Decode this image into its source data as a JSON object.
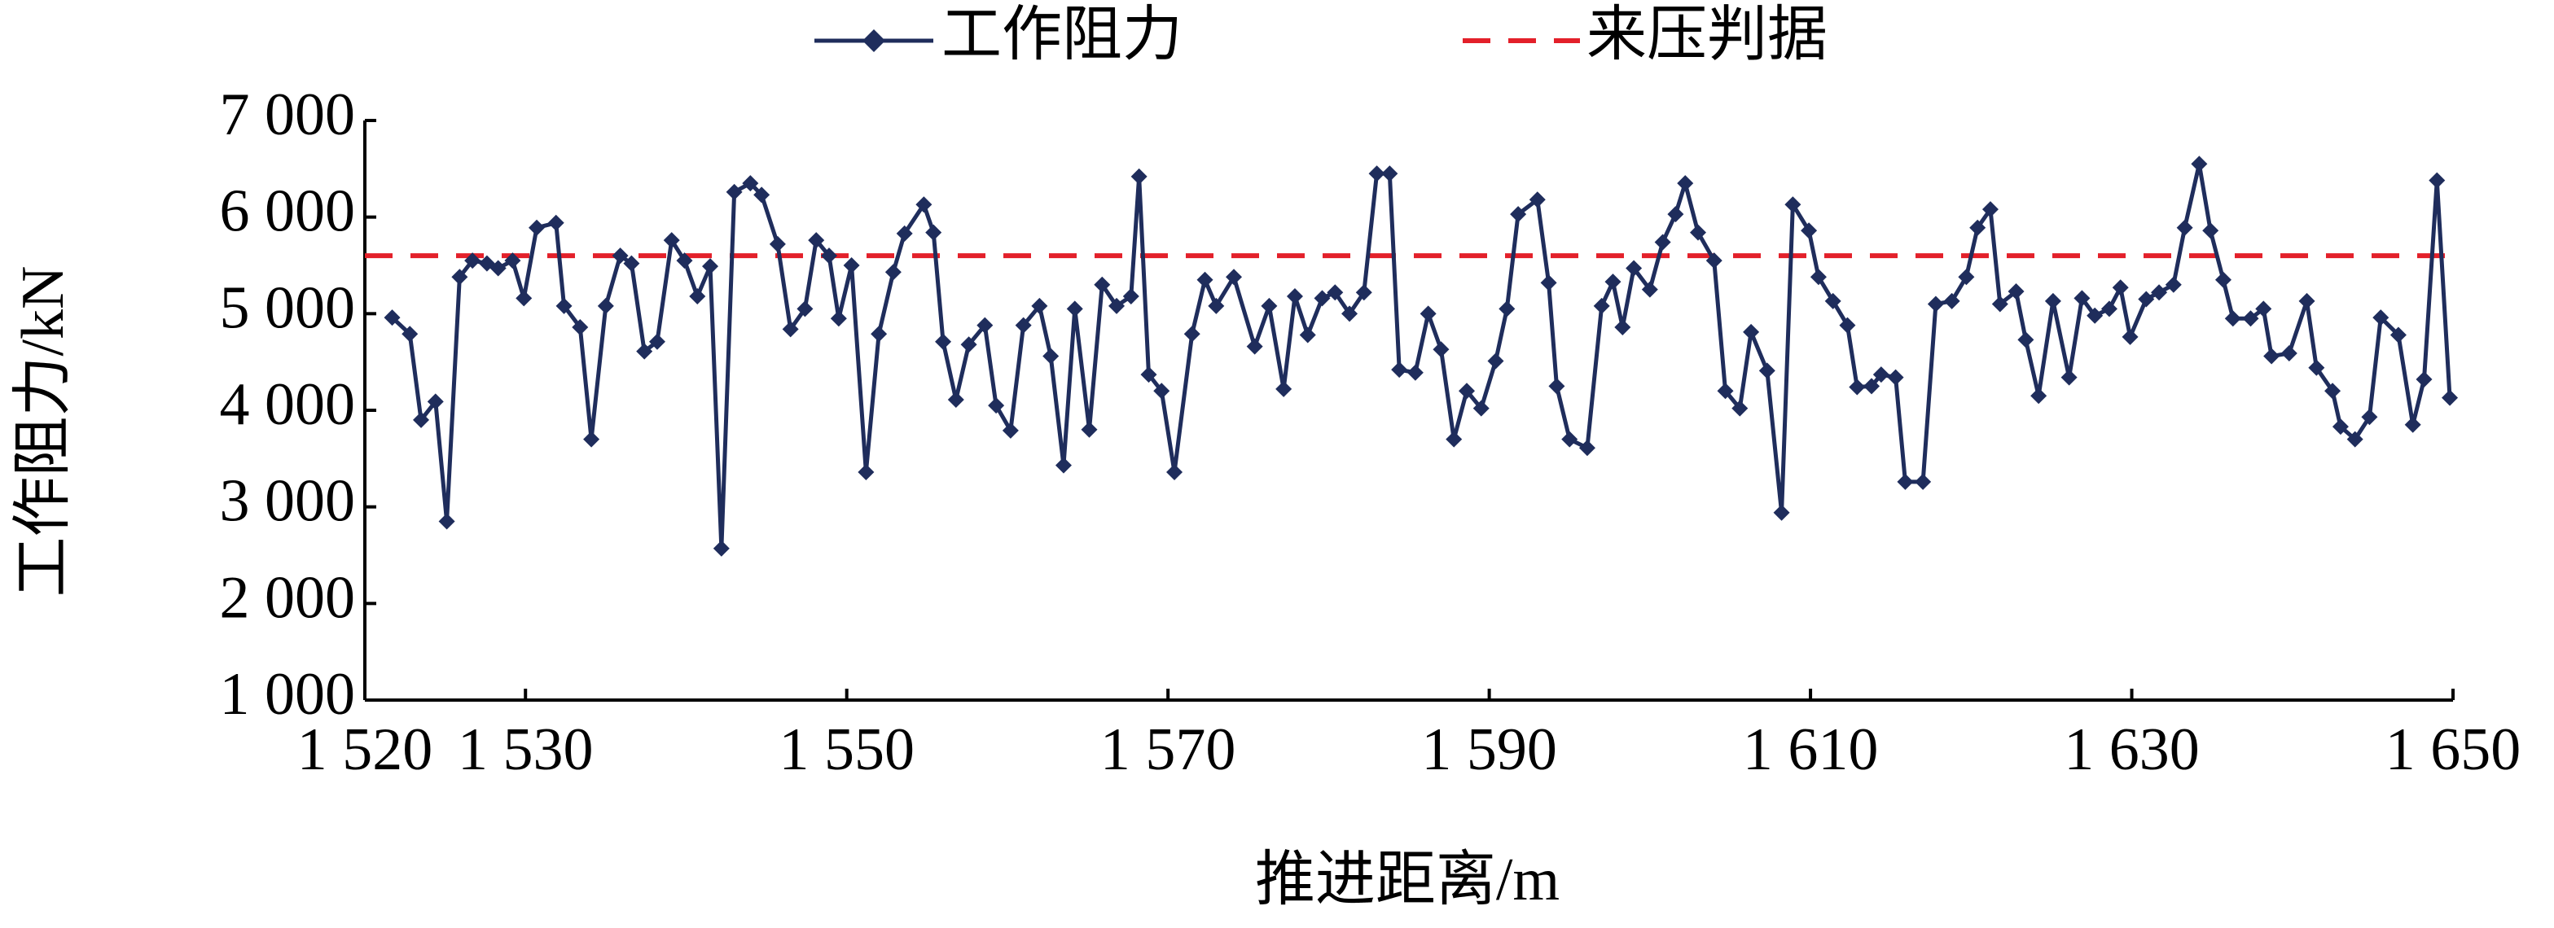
{
  "chart_data": {
    "type": "line",
    "xlabel": "推进距离/m",
    "ylabel": "工作阻力/kN",
    "xlim": [
      1520,
      1650
    ],
    "xticks": [
      {
        "value": 1520,
        "label": "1 520"
      },
      {
        "value": 1530,
        "label": "1 530"
      },
      {
        "value": 1550,
        "label": "1 550"
      },
      {
        "value": 1570,
        "label": "1 570"
      },
      {
        "value": 1590,
        "label": "1 590"
      },
      {
        "value": 1610,
        "label": "1 610"
      },
      {
        "value": 1630,
        "label": "1 630"
      },
      {
        "value": 1650,
        "label": "1 650"
      }
    ],
    "ylim": [
      1000,
      7000
    ],
    "yticks": [
      {
        "value": 1000,
        "label": "1 000"
      },
      {
        "value": 2000,
        "label": "2 000"
      },
      {
        "value": 3000,
        "label": "3 000"
      },
      {
        "value": 4000,
        "label": "4 000"
      },
      {
        "value": 5000,
        "label": "5 000"
      },
      {
        "value": 6000,
        "label": "6 000"
      },
      {
        "value": 7000,
        "label": "7 000"
      }
    ],
    "legend": "top",
    "x": [
      1521.7,
      1522.8,
      1523.5,
      1524.4,
      1525.1,
      1525.9,
      1526.7,
      1527.6,
      1528.3,
      1529.2,
      1529.9,
      1530.7,
      1531.9,
      1532.4,
      1533.4,
      1534.1,
      1535.0,
      1535.9,
      1536.6,
      1537.4,
      1538.2,
      1539.1,
      1539.9,
      1540.7,
      1541.5,
      1542.2,
      1543.0,
      1544.0,
      1544.7,
      1545.7,
      1546.5,
      1547.4,
      1548.1,
      1548.9,
      1549.5,
      1550.3,
      1551.2,
      1552.0,
      1552.9,
      1553.6,
      1554.8,
      1555.4,
      1556.0,
      1556.8,
      1557.6,
      1558.6,
      1559.3,
      1560.2,
      1561.0,
      1562.0,
      1562.7,
      1563.5,
      1564.2,
      1565.1,
      1565.9,
      1566.8,
      1567.7,
      1568.2,
      1568.8,
      1569.6,
      1570.4,
      1571.5,
      1572.3,
      1573.0,
      1574.1,
      1575.4,
      1576.3,
      1577.2,
      1577.9,
      1578.7,
      1579.6,
      1580.4,
      1581.3,
      1582.2,
      1583.0,
      1583.8,
      1584.4,
      1585.4,
      1586.2,
      1587.0,
      1587.8,
      1588.6,
      1589.5,
      1590.4,
      1591.1,
      1591.8,
      1593.0,
      1593.7,
      1594.2,
      1595.0,
      1596.1,
      1597.0,
      1597.7,
      1598.3,
      1599.0,
      1600.0,
      1600.8,
      1601.6,
      1602.2,
      1603.0,
      1604.0,
      1604.7,
      1605.6,
      1606.3,
      1607.3,
      1608.2,
      1608.9,
      1609.9,
      1610.5,
      1611.4,
      1612.3,
      1612.9,
      1613.8,
      1614.4,
      1615.3,
      1615.9,
      1617.0,
      1617.8,
      1618.8,
      1619.7,
      1620.4,
      1621.2,
      1621.8,
      1622.8,
      1623.4,
      1624.2,
      1625.1,
      1626.1,
      1626.9,
      1627.7,
      1628.6,
      1629.3,
      1629.9,
      1630.9,
      1631.7,
      1632.6,
      1633.3,
      1634.2,
      1634.9,
      1635.7,
      1636.3,
      1637.4,
      1638.2,
      1638.7,
      1639.8,
      1640.9,
      1641.5,
      1642.5,
      1643.0,
      1643.9,
      1644.8,
      1645.5,
      1646.6,
      1647.5,
      1648.2,
      1649.0,
      1649.8
    ],
    "series": [
      {
        "name": "工作阻力",
        "color": "#1f2d5c",
        "values": [
          4960,
          4790,
          3900,
          4090,
          2850,
          5380,
          5550,
          5520,
          5470,
          5550,
          5160,
          5890,
          5940,
          5080,
          4860,
          3700,
          5080,
          5600,
          5520,
          4610,
          4710,
          5760,
          5550,
          5180,
          5490,
          2570,
          6260,
          6350,
          6230,
          5720,
          4840,
          5050,
          5760,
          5600,
          4950,
          5500,
          3360,
          4790,
          5430,
          5830,
          6130,
          5840,
          4710,
          4110,
          4680,
          4880,
          4050,
          3790,
          4880,
          5080,
          4560,
          3430,
          5050,
          3800,
          5300,
          5080,
          5180,
          6420,
          4370,
          4200,
          3360,
          4790,
          5350,
          5080,
          5380,
          4660,
          5080,
          4220,
          5180,
          4780,
          5160,
          5220,
          5000,
          5220,
          6450,
          6450,
          4420,
          4390,
          5000,
          4630,
          3700,
          4200,
          4020,
          4510,
          5050,
          6030,
          6180,
          5320,
          4250,
          3700,
          3610,
          5080,
          5330,
          4860,
          5470,
          5250,
          5740,
          6030,
          6350,
          5840,
          5550,
          4200,
          4020,
          4810,
          4410,
          2940,
          6130,
          5860,
          5380,
          5130,
          4880,
          4240,
          4250,
          4370,
          4340,
          3260,
          3260,
          5100,
          5130,
          5380,
          5890,
          6080,
          5100,
          5230,
          4730,
          4150,
          5130,
          4340,
          5160,
          4980,
          5050,
          5270,
          4760,
          5150,
          5220,
          5300,
          5890,
          6550,
          5860,
          5350,
          4950,
          4950,
          5050,
          4560,
          4590,
          5130,
          4440,
          4200,
          3830,
          3700,
          3930,
          4960,
          4780,
          3850,
          4320,
          6380,
          4130
        ]
      }
    ],
    "reference_line": {
      "name": "来压判据",
      "value": 5600,
      "color": "#e3202a"
    }
  }
}
